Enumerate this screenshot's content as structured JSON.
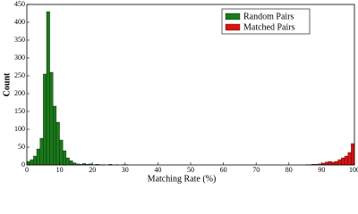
{
  "chart_data": {
    "type": "histogram",
    "x_label": "Matching Rate (%)",
    "y_label": "Count",
    "series": [
      {
        "name": "Random Pairs",
        "color": "#1a7a1a",
        "bins": [
          0,
          1,
          2,
          3,
          4,
          5,
          6,
          7,
          8,
          9,
          10,
          11,
          12,
          13,
          14,
          15,
          16,
          17,
          18,
          19,
          20,
          21,
          22,
          23,
          24,
          25,
          26,
          27,
          28,
          29,
          30,
          31
        ],
        "values": [
          10,
          15,
          25,
          45,
          75,
          255,
          430,
          260,
          165,
          120,
          70,
          40,
          20,
          12,
          6,
          3,
          2,
          4,
          2,
          3,
          1,
          2,
          1,
          1,
          0,
          2,
          0,
          1,
          0,
          1,
          1
        ]
      },
      {
        "name": "Matched Pairs",
        "color": "#dd1111",
        "bins": [
          85,
          86,
          87,
          88,
          89,
          90,
          91,
          92,
          93,
          94,
          95,
          96,
          97,
          98,
          99,
          100
        ],
        "values": [
          1,
          1,
          2,
          2,
          3,
          5,
          8,
          10,
          8,
          10,
          15,
          20,
          25,
          35,
          60
        ]
      }
    ],
    "xlim": [
      0,
      100
    ],
    "xticks": [
      0,
      10,
      20,
      30,
      40,
      50,
      60,
      70,
      80,
      90,
      100
    ],
    "ylim": [
      0,
      450
    ],
    "yticks": [
      0,
      50,
      100,
      150,
      200,
      250,
      300,
      350,
      400,
      450
    ],
    "legend": "upper right"
  }
}
